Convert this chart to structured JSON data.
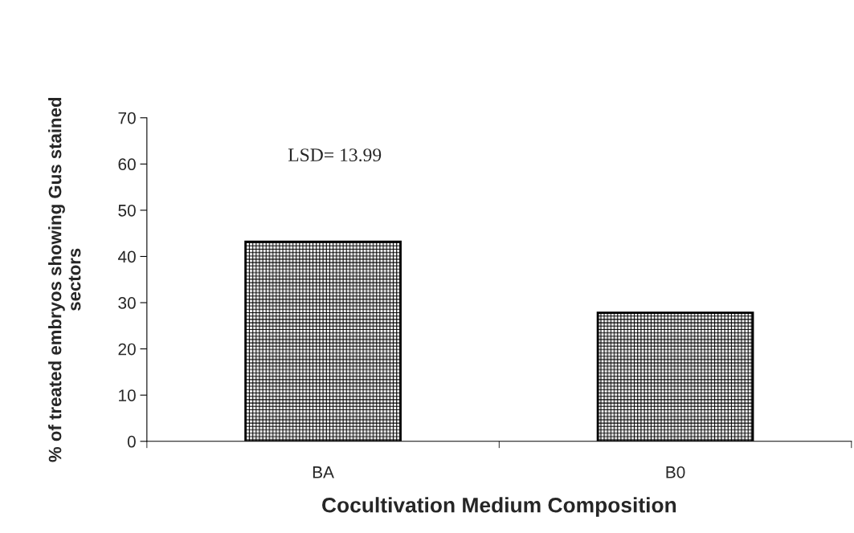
{
  "chart_data": {
    "type": "bar",
    "categories": [
      "BA",
      "B0"
    ],
    "values": [
      43.2,
      27.8
    ],
    "color": "#000000",
    "xlabel": "Cocultivation Medium Composition",
    "ylabel": "% of treated embryos showing Gus stained\nsectors",
    "ylim": [
      0,
      70
    ],
    "yticks": [
      0,
      10,
      20,
      30,
      40,
      50,
      60,
      70
    ],
    "grid": false,
    "legend": false,
    "annotations": [
      "LSD= 13.99"
    ]
  }
}
